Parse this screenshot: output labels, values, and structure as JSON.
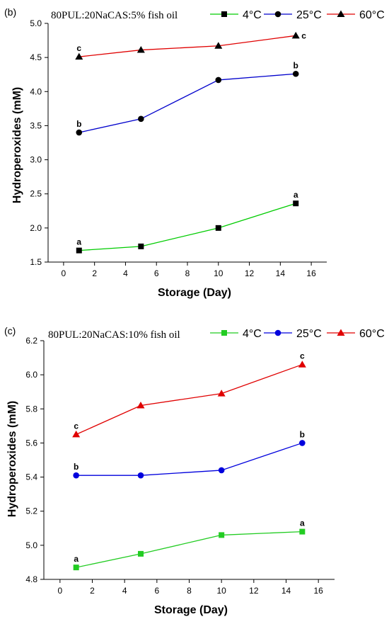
{
  "chart_data": [
    {
      "type": "line",
      "panel_label": "(b)",
      "title": "80PUL:20NaCAS:5% fish oil",
      "xlabel": "Storage (Day)",
      "ylabel": "Hydroperoxides (mM)",
      "xlim": [
        -1,
        17
      ],
      "ylim": [
        1.5,
        5.0
      ],
      "x_ticks": [
        "0",
        "2",
        "4",
        "6",
        "8",
        "10",
        "12",
        "14",
        "16"
      ],
      "y_ticks": [
        "1.5",
        "2.0",
        "2.5",
        "3.0",
        "3.5",
        "4.0",
        "4.5",
        "5.0"
      ],
      "x": [
        1,
        5,
        10,
        15
      ],
      "legend_position": "top",
      "grid": false,
      "series": [
        {
          "name": "4°C",
          "color": "#00cc00",
          "marker": "square",
          "marker_color": "#000000",
          "values": [
            1.67,
            1.73,
            2.0,
            2.36
          ],
          "start_letter": "a",
          "end_letter": "a"
        },
        {
          "name": "25°C",
          "color": "#0000cc",
          "marker": "circle",
          "marker_color": "#000000",
          "values": [
            3.4,
            3.6,
            4.17,
            4.26
          ],
          "start_letter": "b",
          "end_letter": "b"
        },
        {
          "name": "60°C",
          "color": "#e00000",
          "marker": "triangle",
          "marker_color": "#000000",
          "values": [
            4.51,
            4.61,
            4.67,
            4.82
          ],
          "start_letter": "c",
          "end_letter": "c"
        }
      ]
    },
    {
      "type": "line",
      "panel_label": "(c)",
      "title": "80PUL:20NaCAS:10% fish oil",
      "xlabel": "Storage (Day)",
      "ylabel": "Hydroperoxides (mM)",
      "xlim": [
        -1,
        17
      ],
      "ylim": [
        4.8,
        6.2
      ],
      "x_ticks": [
        "0",
        "2",
        "4",
        "6",
        "8",
        "10",
        "12",
        "14",
        "16"
      ],
      "y_ticks": [
        "4.8",
        "5.0",
        "5.2",
        "5.4",
        "5.6",
        "5.8",
        "6.0",
        "6.2"
      ],
      "x": [
        1,
        5,
        10,
        15
      ],
      "legend_position": "top",
      "grid": false,
      "series": [
        {
          "name": "4°C",
          "color": "#22cc22",
          "marker": "square",
          "marker_color": "#22cc22",
          "values": [
            4.87,
            4.95,
            5.06,
            5.08
          ],
          "start_letter": "a",
          "end_letter": "a"
        },
        {
          "name": "25°C",
          "color": "#0000dd",
          "marker": "circle",
          "marker_color": "#0000dd",
          "values": [
            5.41,
            5.41,
            5.44,
            5.6
          ],
          "start_letter": "b",
          "end_letter": "b"
        },
        {
          "name": "60°C",
          "color": "#e00000",
          "marker": "triangle",
          "marker_color": "#e00000",
          "values": [
            5.65,
            5.82,
            5.89,
            6.06
          ],
          "start_letter": "c",
          "end_letter": "c"
        }
      ]
    }
  ]
}
